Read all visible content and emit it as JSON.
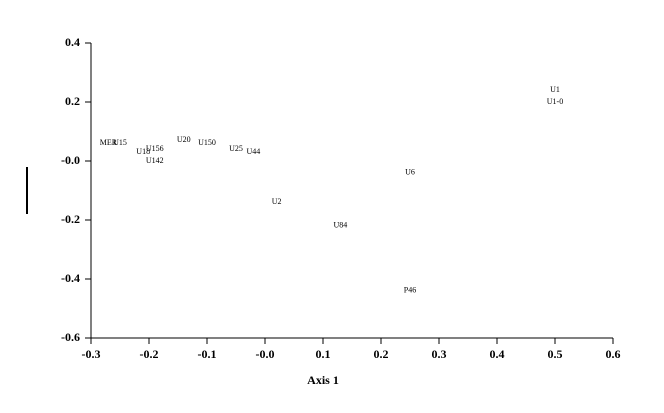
{
  "chart_data": {
    "type": "scatter",
    "x_label": "Axis 1",
    "labels": [
      "U1",
      "U1-0",
      "MER",
      "U15",
      "U18",
      "U156",
      "U142",
      "U20",
      "U150",
      "U25",
      "U44",
      "U2",
      "U6",
      "U84",
      "P46"
    ],
    "x": [
      0.5,
      0.5,
      -0.27,
      -0.25,
      -0.21,
      -0.19,
      -0.19,
      -0.14,
      -0.1,
      -0.05,
      -0.02,
      0.02,
      0.25,
      0.13,
      0.25
    ],
    "values": [
      0.24,
      0.2,
      0.06,
      0.06,
      0.03,
      0.04,
      0.0,
      0.07,
      0.06,
      0.04,
      0.03,
      -0.14,
      -0.04,
      -0.22,
      -0.44
    ],
    "xlim": [
      -0.3,
      0.6
    ],
    "ylim": [
      -0.6,
      0.4
    ],
    "xticks": [
      -0.3,
      -0.2,
      -0.1,
      {
        "value": 0,
        "label": "-0.0"
      },
      0.1,
      0.2,
      0.3,
      0.4,
      0.5,
      0.6
    ],
    "yticks": [
      0.4,
      0.2,
      {
        "value": 0,
        "label": "-0.0"
      },
      -0.2,
      -0.4,
      -0.6
    ]
  }
}
